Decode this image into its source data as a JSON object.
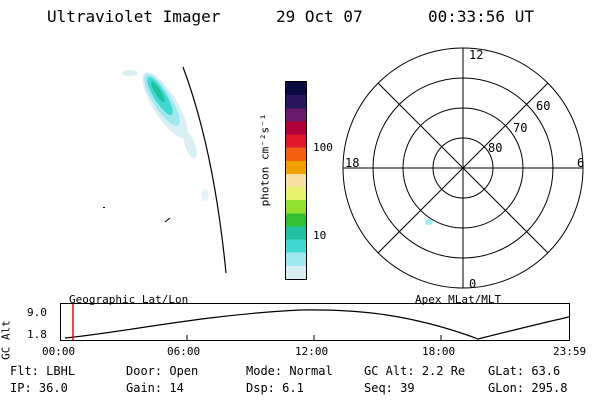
{
  "header": {
    "title": "Ultraviolet Imager",
    "date": "29 Oct 07",
    "time": "00:33:56 UT"
  },
  "colorbar": {
    "unit_label": "photon cm⁻²s⁻¹",
    "ticks": [
      "100",
      "10"
    ],
    "colors": [
      "#0a0a40",
      "#2a1660",
      "#6a1a6a",
      "#b0003a",
      "#e0162a",
      "#f06010",
      "#f0a000",
      "#f8e0a0",
      "#e8f070",
      "#90e030",
      "#30c030",
      "#20c0a0",
      "#40d8d0",
      "#a0e8f0",
      "#d8f0f4"
    ]
  },
  "polar": {
    "mlt_labels": {
      "top": "12",
      "right": "6",
      "bottom": "0",
      "left": "18"
    },
    "lat_labels": [
      "60",
      "70",
      "80"
    ]
  },
  "timeline": {
    "ylabel": "GC Alt",
    "ymax": "9.0",
    "ymin": "1.8",
    "left_label": "Geographic Lat/Lon",
    "right_label": "Apex MLat/MLT",
    "x_ticks": [
      "00:00",
      "06:00",
      "12:00",
      "18:00",
      "23:59"
    ]
  },
  "footer": {
    "row1": [
      {
        "key": "Flt:",
        "val": "LBHL"
      },
      {
        "key": "Door:",
        "val": "Open"
      },
      {
        "key": "Mode:",
        "val": "Normal"
      },
      {
        "key": "GC Alt:",
        "val": "2.2 Re"
      },
      {
        "key": "GLat:",
        "val": "63.6"
      }
    ],
    "row2": [
      {
        "key": "IP:",
        "val": "36.0"
      },
      {
        "key": "Gain:",
        "val": "14"
      },
      {
        "key": "Dsp:",
        "val": "6.1"
      },
      {
        "key": "Seq:",
        "val": "39"
      },
      {
        "key": "GLon:",
        "val": "295.8"
      }
    ]
  }
}
